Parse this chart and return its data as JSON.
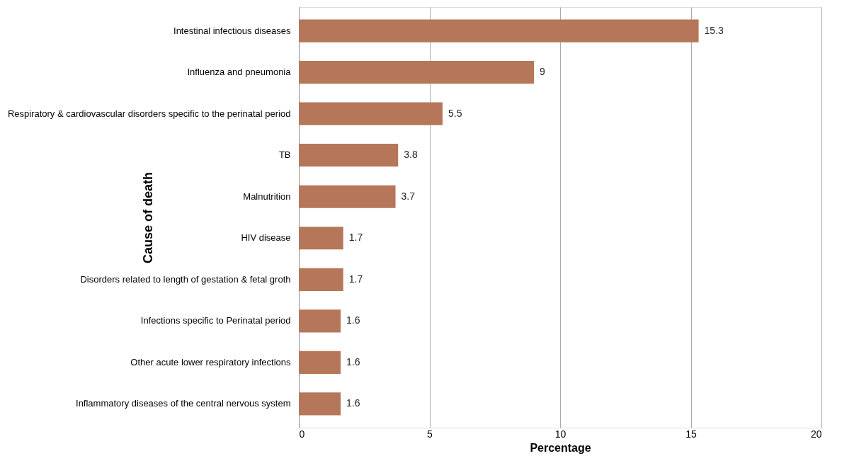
{
  "chart_data": {
    "type": "bar",
    "orientation": "horizontal",
    "xlabel": "Percentage",
    "ylabel": "Cause of death",
    "categories": [
      "Intestinal infectious diseases",
      "Influenza and pneumonia",
      "Respiratory & cardiovascular disorders specific to the perinatal period",
      "TB",
      "Malnutrition",
      "HIV disease",
      "Disorders related to length of gestation & fetal groth",
      "Infections specific to Perinatal period",
      "Other acute lower respiratory infections",
      "Inflammatory diseases of the central nervous system"
    ],
    "values": [
      15.3,
      9,
      5.5,
      3.8,
      3.7,
      1.7,
      1.7,
      1.6,
      1.6,
      1.6
    ],
    "color": "#b5765a",
    "xlim": [
      0,
      20
    ],
    "xticks": [
      0,
      5,
      10,
      15,
      20
    ],
    "grid": "x",
    "data_labels": true
  }
}
